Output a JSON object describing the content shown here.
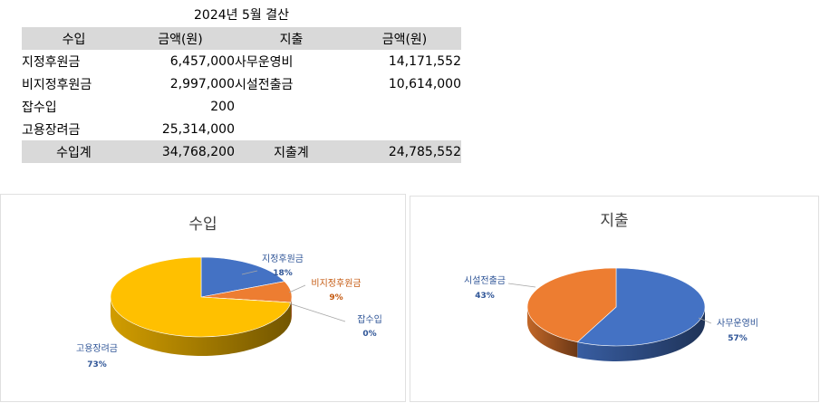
{
  "title": "2024년 5월 결산",
  "table": {
    "headers": [
      "수입",
      "금액(원)",
      "지출",
      "금액(원)"
    ],
    "rows": [
      [
        "지정후원금",
        "6,457,000",
        "사무운영비",
        "14,171,552"
      ],
      [
        "비지정후원금",
        "2,997,000",
        "시설전출금",
        "10,614,000"
      ],
      [
        "잡수입",
        "200",
        "",
        ""
      ],
      [
        "고용장려금",
        "25,314,000",
        "",
        ""
      ]
    ],
    "totals": [
      "수입계",
      "34,768,200",
      "지출계",
      "24,785,552"
    ]
  },
  "chart_data": [
    {
      "type": "pie",
      "title": "수입",
      "categories": [
        "지정후원금",
        "비지정후원금",
        "잡수입",
        "고용장려금"
      ],
      "values": [
        6457000,
        2997000,
        200,
        25314000
      ],
      "percent_labels": [
        "18%",
        "9%",
        "0%",
        "73%"
      ],
      "colors": [
        "#4472c4",
        "#ed7d31",
        "#a5a5a5",
        "#ffc000"
      ],
      "label_colors": [
        "#2f5597",
        "#c55a11",
        "#2f5597",
        "#2f5597"
      ],
      "style": "3d"
    },
    {
      "type": "pie",
      "title": "지출",
      "categories": [
        "사무운영비",
        "시설전출금"
      ],
      "values": [
        14171552,
        10614000
      ],
      "percent_labels": [
        "57%",
        "43%"
      ],
      "colors": [
        "#4472c4",
        "#ed7d31"
      ],
      "label_colors": [
        "#2f5597",
        "#2f5597"
      ],
      "style": "3d"
    }
  ]
}
